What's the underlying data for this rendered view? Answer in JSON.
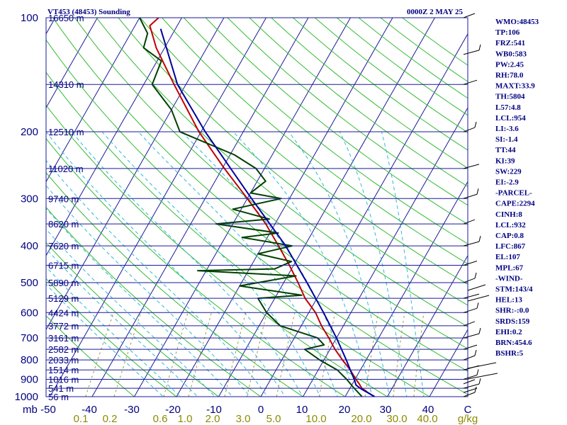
{
  "header": {
    "station": "VT453 (48453) Sounding",
    "time": "0000Z  2 MAY 25"
  },
  "chart_data": {
    "type": "line",
    "subtype": "skew-t log-p",
    "pressure_unit": "mb",
    "temperature_unit": "C",
    "mixing_ratio_unit": "g/kg",
    "pressure_range": [
      100,
      1000
    ],
    "temperature_range": [
      -50,
      50
    ],
    "pressure_levels": [
      {
        "p": 100,
        "p_label": "100",
        "height": "16650 m"
      },
      {
        "p": 150,
        "p_label": "",
        "height": "14310 m"
      },
      {
        "p": 200,
        "p_label": "200",
        "height": "12510 m"
      },
      {
        "p": 250,
        "p_label": "",
        "height": "11020 m"
      },
      {
        "p": 300,
        "p_label": "300",
        "height": "9740 m"
      },
      {
        "p": 350,
        "p_label": "",
        "height": "8620 m"
      },
      {
        "p": 400,
        "p_label": "400",
        "height": "7620 m"
      },
      {
        "p": 450,
        "p_label": "",
        "height": "6715 m"
      },
      {
        "p": 500,
        "p_label": "500",
        "height": "5890 m"
      },
      {
        "p": 550,
        "p_label": "",
        "height": "5129 m"
      },
      {
        "p": 600,
        "p_label": "600",
        "height": "4424 m"
      },
      {
        "p": 650,
        "p_label": "",
        "height": "3772 m"
      },
      {
        "p": 700,
        "p_label": "700",
        "height": "3161 m"
      },
      {
        "p": 750,
        "p_label": "",
        "height": "2582 m"
      },
      {
        "p": 800,
        "p_label": "800",
        "height": "2033 m"
      },
      {
        "p": 850,
        "p_label": "",
        "height": "1514 m"
      },
      {
        "p": 900,
        "p_label": "900",
        "height": "1016 m"
      },
      {
        "p": 950,
        "p_label": "",
        "height": "541 m"
      },
      {
        "p": 1000,
        "p_label": "1000",
        "height": "56 m"
      }
    ],
    "temperature_ticks": [
      "-50",
      "-40",
      "-30",
      "-20",
      "-10",
      "0",
      "10",
      "20",
      "30",
      "40",
      "C"
    ],
    "mixing_ratio_ticks": [
      "0.1",
      "0.2",
      "0.6",
      "1.0",
      "2.0",
      "3.0",
      "5.0",
      "10.0",
      "20.0",
      "30.0",
      "40.0",
      "g/kg"
    ],
    "mixing_ratio_values": [
      0.1,
      0.2,
      0.6,
      1.0,
      2.0,
      3.0,
      5.0,
      10.0,
      20.0,
      30.0,
      40.0
    ],
    "series": [
      {
        "color": "#c00000",
        "points": [
          {
            "p": 1000,
            "t": 27.0
          },
          {
            "p": 975,
            "t": 24.8
          },
          {
            "p": 950,
            "t": 22.8
          },
          {
            "p": 925,
            "t": 21.6
          },
          {
            "p": 900,
            "t": 20.2
          },
          {
            "p": 850,
            "t": 17.6
          },
          {
            "p": 800,
            "t": 14.4
          },
          {
            "p": 750,
            "t": 11.2
          },
          {
            "p": 700,
            "t": 8.2
          },
          {
            "p": 650,
            "t": 4.8
          },
          {
            "p": 600,
            "t": 1.6
          },
          {
            "p": 550,
            "t": -2.8
          },
          {
            "p": 500,
            "t": -6.6
          },
          {
            "p": 450,
            "t": -11.0
          },
          {
            "p": 400,
            "t": -16.2
          },
          {
            "p": 350,
            "t": -22.2
          },
          {
            "p": 300,
            "t": -30.0
          },
          {
            "p": 250,
            "t": -39.5
          },
          {
            "p": 200,
            "t": -50.5
          },
          {
            "p": 150,
            "t": -62.8
          },
          {
            "p": 120,
            "t": -72.0
          },
          {
            "p": 105,
            "t": -76.5
          },
          {
            "p": 100,
            "t": -75.5
          }
        ]
      },
      {
        "color": "#004000",
        "points": [
          {
            "p": 1000,
            "t": 24.0
          },
          {
            "p": 950,
            "t": 21.0
          },
          {
            "p": 900,
            "t": 18.0
          },
          {
            "p": 850,
            "t": 14.5
          },
          {
            "p": 800,
            "t": 9.0
          },
          {
            "p": 750,
            "t": 4.0
          },
          {
            "p": 730,
            "t": 8.0
          },
          {
            "p": 700,
            "t": 5.5
          },
          {
            "p": 650,
            "t": -5.0
          },
          {
            "p": 600,
            "t": -10.0
          },
          {
            "p": 550,
            "t": -14.0
          },
          {
            "p": 540,
            "t": -4.0
          },
          {
            "p": 510,
            "t": -20.0
          },
          {
            "p": 480,
            "t": -8.0
          },
          {
            "p": 465,
            "t": -32.0
          },
          {
            "p": 460,
            "t": -14.0
          },
          {
            "p": 440,
            "t": -11.0
          },
          {
            "p": 420,
            "t": -20.0
          },
          {
            "p": 400,
            "t": -13.0
          },
          {
            "p": 380,
            "t": -26.0
          },
          {
            "p": 370,
            "t": -18.0
          },
          {
            "p": 350,
            "t": -34.0
          },
          {
            "p": 340,
            "t": -22.0
          },
          {
            "p": 320,
            "t": -32.0
          },
          {
            "p": 300,
            "t": -22.0
          },
          {
            "p": 290,
            "t": -30.0
          },
          {
            "p": 270,
            "t": -28.0
          },
          {
            "p": 250,
            "t": -32.0
          },
          {
            "p": 230,
            "t": -39.0
          },
          {
            "p": 200,
            "t": -55.0
          },
          {
            "p": 175,
            "t": -60.0
          },
          {
            "p": 150,
            "t": -68.0
          },
          {
            "p": 130,
            "t": -69.0
          },
          {
            "p": 120,
            "t": -75.0
          },
          {
            "p": 110,
            "t": -76.0
          },
          {
            "p": 100,
            "t": -80.0
          }
        ]
      },
      {
        "color": "#0000a0",
        "points": [
          {
            "p": 1000,
            "t": 27.0
          },
          {
            "p": 950,
            "t": 22.4
          },
          {
            "p": 932,
            "t": 21.0
          },
          {
            "p": 900,
            "t": 19.8
          },
          {
            "p": 850,
            "t": 17.6
          },
          {
            "p": 800,
            "t": 15.3
          },
          {
            "p": 700,
            "t": 10.0
          },
          {
            "p": 600,
            "t": 3.5
          },
          {
            "p": 500,
            "t": -4.5
          },
          {
            "p": 400,
            "t": -14.5
          },
          {
            "p": 300,
            "t": -29.0
          },
          {
            "p": 250,
            "t": -38.0
          },
          {
            "p": 200,
            "t": -49.0
          },
          {
            "p": 150,
            "t": -62.0
          },
          {
            "p": 107,
            "t": -73.5
          }
        ]
      }
    ],
    "wind_barb_pressures": [
      1000,
      975,
      950,
      925,
      900,
      850,
      800,
      750,
      700,
      650,
      600,
      550,
      500,
      450,
      400,
      350,
      300,
      250,
      200,
      150,
      125,
      100
    ],
    "indices": [
      "WMO:48453",
      "TP:106",
      "FRZ:541",
      "WB0:583",
      "PW:2.45",
      "RH:78.0",
      "MAXT:33.9",
      "TH:5804",
      "L57:4.8",
      "LCL:954",
      "LI:-3.6",
      "SI:-1.4",
      "TT:44",
      "KI:39",
      "SW:229",
      "EI:-2.9",
      "-PARCEL-",
      "CAPE:2294",
      "CINH:8",
      "LCL:932",
      "CAP:0.8",
      "LFC:867",
      "EL:107",
      "MPL:67",
      "-WIND-",
      "STM:143/4",
      "HEL:13",
      "SHR:-:0.0",
      "SRDS:159",
      "EHI:0.2",
      "BRN:454.6",
      "BSHR:5"
    ]
  }
}
